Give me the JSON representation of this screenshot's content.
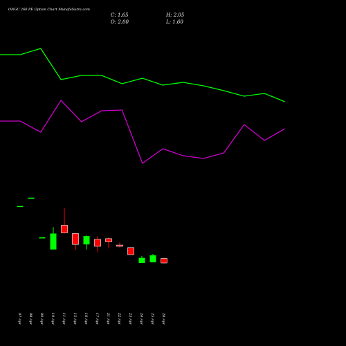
{
  "title": "ONGC 260 PE Option Chart MunafaSutra.com",
  "ohlc": {
    "c": "C: 1.65",
    "h": "H: 2.05",
    "o": "O: 2.00",
    "l": "L: 1.60"
  },
  "colors": {
    "background": "#000000",
    "up": "#00ff00",
    "down": "#ff0000",
    "line1": "#00ff00",
    "line2": "#cc00cc",
    "text": "#ffffff"
  },
  "chart_data": {
    "type": "candlestick",
    "title": "ONGC 260 PE Option Chart MunafaSutra.com",
    "dates": [
      "07 Apr",
      "08 Apr",
      "09 Apr",
      "10 Apr",
      "11 Apr",
      "15 Apr",
      "16 Apr",
      "17 Apr",
      "21 Apr",
      "22 Apr",
      "23 Apr",
      "24 Apr",
      "25 Apr",
      "28 Apr"
    ],
    "candles": [
      {
        "date": "07 Apr",
        "open": 6.1,
        "high": 6.1,
        "low": 6.1,
        "close": 6.1
      },
      {
        "date": "08 Apr",
        "open": 6.75,
        "high": 6.75,
        "low": 6.75,
        "close": 6.75
      },
      {
        "date": "09 Apr",
        "open": 3.65,
        "high": 3.65,
        "low": 3.65,
        "close": 3.65
      },
      {
        "date": "10 Apr",
        "open": 2.7,
        "high": 4.45,
        "low": 2.7,
        "close": 3.95
      },
      {
        "date": "11 Apr",
        "open": 4.6,
        "high": 5.95,
        "low": 3.95,
        "close": 4.0
      },
      {
        "date": "15 Apr",
        "open": 3.95,
        "high": 3.95,
        "low": 2.65,
        "close": 3.1
      },
      {
        "date": "16 Apr",
        "open": 3.1,
        "high": 3.8,
        "low": 2.7,
        "close": 3.75
      },
      {
        "date": "17 Apr",
        "open": 3.5,
        "high": 3.75,
        "low": 2.5,
        "close": 2.95
      },
      {
        "date": "21 Apr",
        "open": 3.55,
        "high": 3.65,
        "low": 2.8,
        "close": 3.3
      },
      {
        "date": "22 Apr",
        "open": 3.05,
        "high": 3.25,
        "low": 2.85,
        "close": 2.95
      },
      {
        "date": "23 Apr",
        "open": 2.85,
        "high": 2.85,
        "low": 2.3,
        "close": 2.3
      },
      {
        "date": "24 Apr",
        "open": 1.65,
        "high": 2.2,
        "low": 1.65,
        "close": 2.05
      },
      {
        "date": "25 Apr",
        "open": 1.7,
        "high": 2.35,
        "low": 1.7,
        "close": 2.25
      },
      {
        "date": "28 Apr",
        "open": 2.0,
        "high": 2.05,
        "low": 1.6,
        "close": 1.65
      }
    ],
    "line_series": [
      {
        "color": "#00ff00",
        "values": [
          79,
          79,
          70,
          115,
          109,
          109,
          121,
          113,
          123,
          119,
          124,
          131,
          139,
          135,
          147
        ]
      },
      {
        "color": "#cc00cc",
        "values": [
          175,
          175,
          191,
          145,
          176,
          160,
          159,
          236,
          215,
          225,
          229,
          221,
          180,
          203,
          186
        ]
      }
    ]
  }
}
